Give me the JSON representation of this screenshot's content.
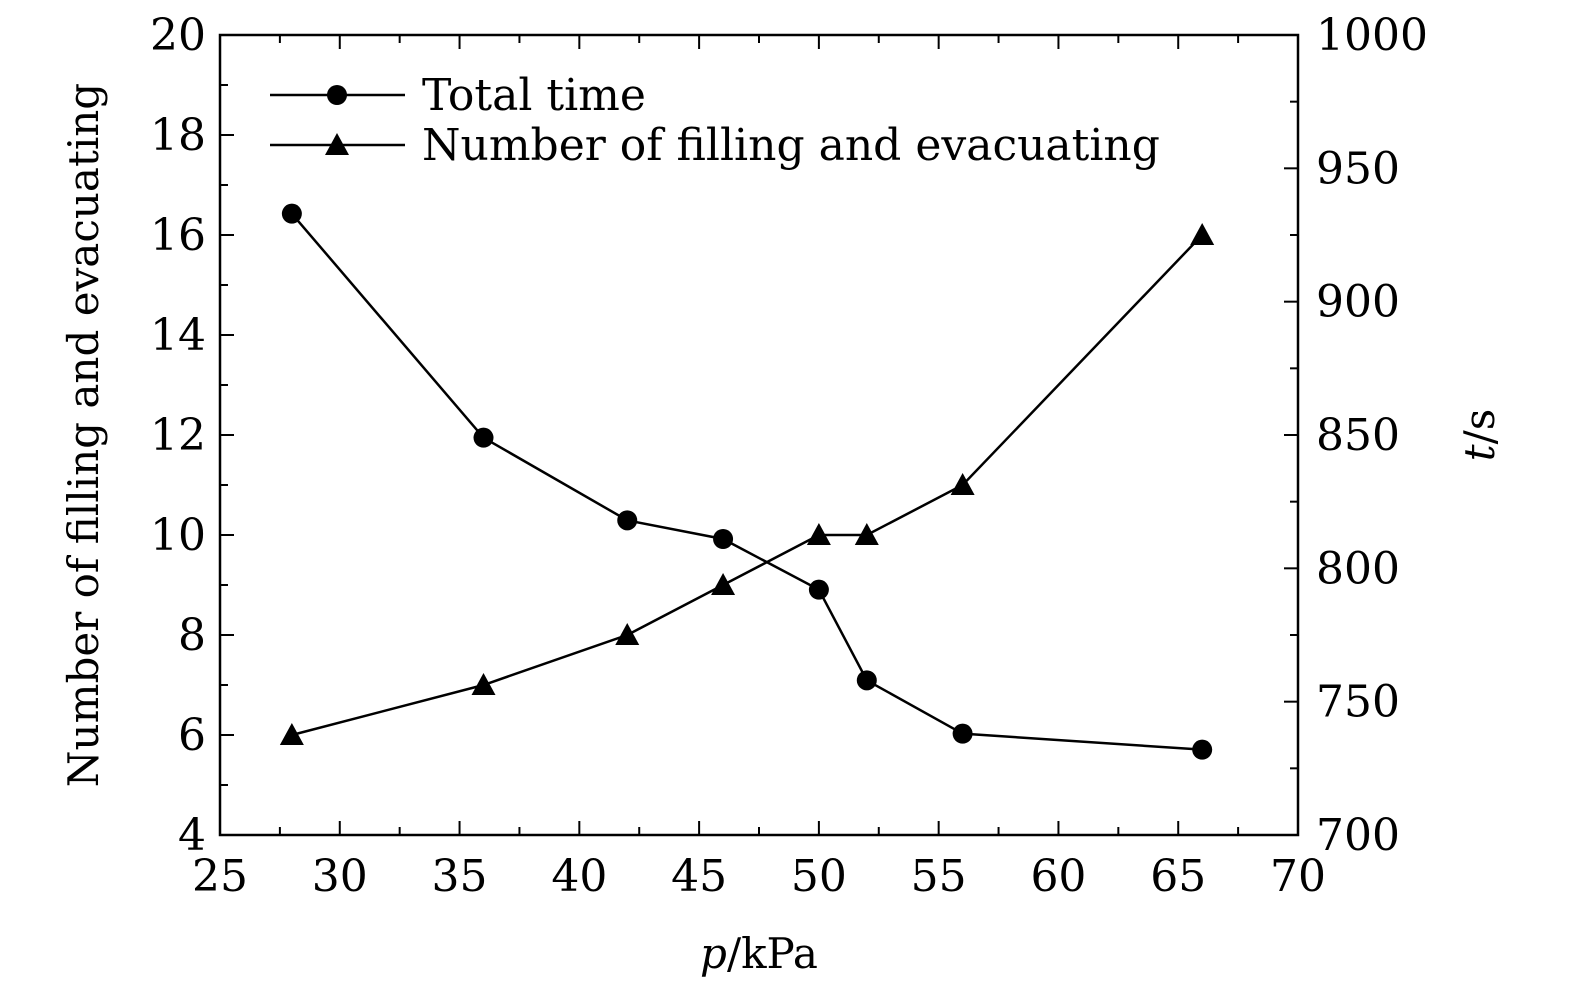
{
  "chart_data": {
    "type": "line",
    "xlabel_var": "p",
    "xlabel_unit": "/kPa",
    "ylabel_left": "Number of filling and evacuating",
    "ylabel_right_var": "t",
    "ylabel_right_unit": "/s",
    "xlim": [
      25,
      70
    ],
    "ylim_left": [
      4,
      20
    ],
    "ylim_right": [
      700,
      1000
    ],
    "x_ticks": [
      "25",
      "30",
      "35",
      "40",
      "45",
      "50",
      "55",
      "60",
      "65",
      "70"
    ],
    "y_left_ticks": [
      "4",
      "6",
      "8",
      "10",
      "12",
      "14",
      "16",
      "18",
      "20"
    ],
    "y_right_ticks": [
      "700",
      "750",
      "800",
      "850",
      "900",
      "950",
      "1000"
    ],
    "grid": false,
    "legend_position": "top-left",
    "series": [
      {
        "name": "Total time",
        "marker": "circle",
        "axis": "right",
        "x": [
          28,
          36,
          42,
          46,
          50,
          52,
          56,
          66
        ],
        "y": [
          933,
          849,
          818,
          811,
          792,
          758,
          738,
          732
        ]
      },
      {
        "name": "Number of filling and evacuating",
        "marker": "triangle",
        "axis": "left",
        "x": [
          28,
          36,
          42,
          46,
          50,
          52,
          56,
          66
        ],
        "y": [
          6,
          7,
          8,
          9,
          10,
          10,
          11,
          16
        ]
      }
    ]
  }
}
